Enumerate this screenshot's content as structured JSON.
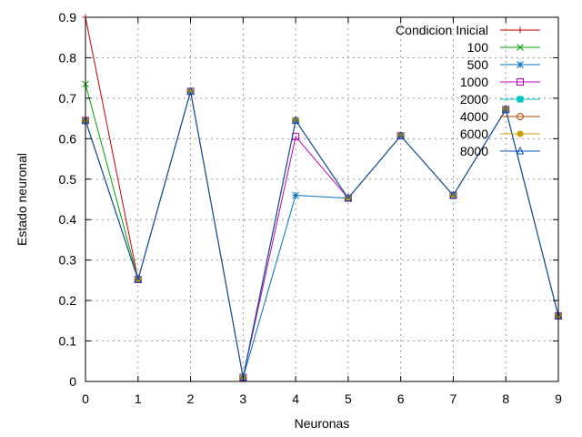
{
  "chart_data": {
    "type": "line",
    "title": "",
    "xlabel": "Neuronas",
    "ylabel": "Estado neuronal",
    "xlim": [
      0,
      9
    ],
    "ylim": [
      0,
      0.9
    ],
    "grid": true,
    "legend_position": "top-right",
    "x": [
      0,
      1,
      2,
      3,
      4,
      5,
      6,
      7,
      8,
      9
    ],
    "x_tick_labels": [
      "0",
      "1",
      "2",
      "3",
      "4",
      "5",
      "6",
      "7",
      "8",
      "9"
    ],
    "y_tick_labels": [
      "0",
      "0.1",
      "0.2",
      "0.3",
      "0.4",
      "0.5",
      "0.6",
      "0.7",
      "0.8",
      "0.9"
    ],
    "series": [
      {
        "name": "Condicion Inicial",
        "color": "#cc0000",
        "marker": "plus",
        "values": [
          0.9,
          0.252,
          0.717,
          0.01,
          0.645,
          0.453,
          0.607,
          0.46,
          0.672,
          0.162
        ]
      },
      {
        "name": "100",
        "color": "#00a000",
        "marker": "cross",
        "values": [
          0.735,
          0.252,
          0.717,
          0.01,
          0.645,
          0.453,
          0.607,
          0.46,
          0.672,
          0.162
        ]
      },
      {
        "name": "500",
        "color": "#0070c0",
        "marker": "star",
        "values": [
          0.645,
          0.252,
          0.717,
          0.01,
          0.46,
          0.453,
          0.607,
          0.46,
          0.672,
          0.162
        ]
      },
      {
        "name": "1000",
        "color": "#c000c0",
        "marker": "square",
        "values": [
          0.645,
          0.252,
          0.717,
          0.01,
          0.605,
          0.453,
          0.607,
          0.46,
          0.672,
          0.162
        ]
      },
      {
        "name": "2000",
        "color": "#00c8c8",
        "marker": "filled-square",
        "values": [
          0.645,
          0.252,
          0.717,
          0.01,
          0.645,
          0.453,
          0.607,
          0.46,
          0.672,
          0.162
        ]
      },
      {
        "name": "4000",
        "color": "#c04000",
        "marker": "circle",
        "values": [
          0.645,
          0.252,
          0.717,
          0.01,
          0.645,
          0.453,
          0.607,
          0.46,
          0.672,
          0.162
        ]
      },
      {
        "name": "6000",
        "color": "#c8a000",
        "marker": "filled-circle",
        "values": [
          0.645,
          0.252,
          0.717,
          0.01,
          0.645,
          0.453,
          0.607,
          0.46,
          0.672,
          0.162
        ]
      },
      {
        "name": "8000",
        "color": "#0050c0",
        "marker": "triangle",
        "values": [
          0.645,
          0.252,
          0.717,
          0.01,
          0.645,
          0.453,
          0.607,
          0.46,
          0.672,
          0.162
        ]
      }
    ]
  }
}
